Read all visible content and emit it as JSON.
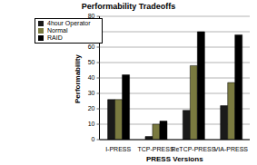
{
  "chart_data": {
    "type": "bar",
    "title": "Performability Tradeoffs",
    "x_label": "PRESS Versions",
    "y_label": "Performability",
    "categories": [
      "I-PRESS",
      "TCP-PRESS",
      "ReTCP-PRESS",
      "VIA-PRESS"
    ],
    "series": [
      {
        "name": "4hour Operator",
        "color": "#1a1a1a",
        "values": [
          26,
          2,
          19,
          22
        ]
      },
      {
        "name": "Normal",
        "color": "#7a7a40",
        "values": [
          26,
          10,
          48,
          37
        ]
      },
      {
        "name": "RAID",
        "color": "#000000",
        "values": [
          42,
          12,
          70,
          68
        ]
      }
    ],
    "ylim": [
      0,
      80
    ],
    "yticks": [
      0,
      10,
      20,
      30,
      40,
      50,
      60,
      70,
      80
    ],
    "grid": true,
    "legend": "upper left"
  }
}
